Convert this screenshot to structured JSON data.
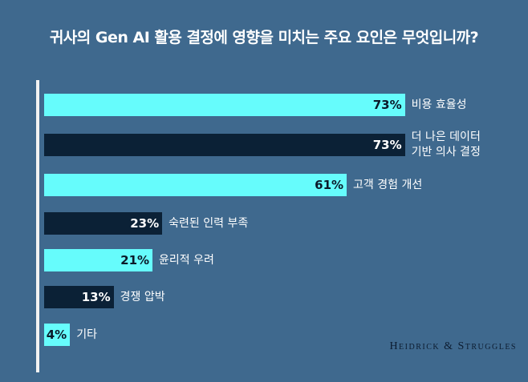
{
  "chart_data": {
    "type": "bar",
    "orientation": "horizontal",
    "title": "귀사의 Gen AI 활용 결정에 영향을 미치는 주요 요인은 무엇입니까?",
    "categories": [
      "비용 효율성",
      "더 나은 데이터\n기반 의사 결정",
      "고객 경험 개선",
      "숙련된 인력 부족",
      "윤리적 우려",
      "경쟁 압박",
      "기타"
    ],
    "values": [
      73,
      73,
      61,
      23,
      21,
      13,
      4
    ],
    "value_labels": [
      "73%",
      "73%",
      "61%",
      "23%",
      "21%",
      "13%",
      "4%"
    ],
    "bar_colors": [
      "#66fcfc",
      "#0b2136",
      "#66fcfc",
      "#0b2136",
      "#66fcfc",
      "#0b2136",
      "#66fcfc"
    ],
    "unit": "%",
    "grid": false
  },
  "brand": "Heidrick & Struggles",
  "colors": {
    "background": "#3f698e",
    "cyan": "#66fcfc",
    "navy": "#0b2136"
  }
}
